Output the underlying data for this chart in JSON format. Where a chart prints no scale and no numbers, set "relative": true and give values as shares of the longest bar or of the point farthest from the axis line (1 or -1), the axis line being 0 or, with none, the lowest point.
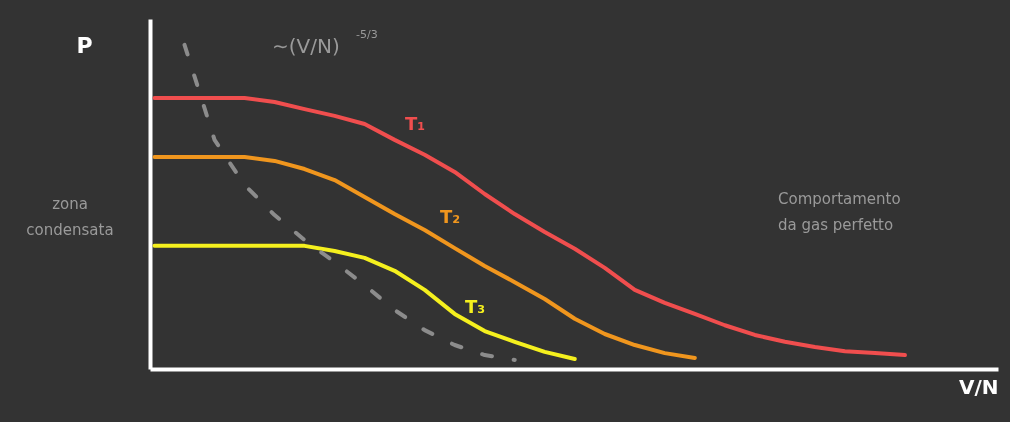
{
  "chart_data": {
    "type": "line",
    "relative": true,
    "xlabel": "V/N",
    "ylabel": "P",
    "legend": false,
    "grid": false,
    "marker": "none",
    "categories": [
      null,
      null,
      null,
      null,
      null,
      null,
      null,
      null,
      null,
      null,
      null,
      null,
      null,
      null,
      null,
      null,
      null,
      null,
      null,
      null,
      null,
      null,
      null,
      null,
      null,
      null
    ],
    "series": [
      {
        "name": "T₁",
        "color": "#f04e4e",
        "values": [
          0.836,
          0.836,
          0.836,
          0.836,
          0.824,
          0.802,
          0.781,
          0.756,
          0.707,
          0.661,
          0.608,
          0.54,
          0.478,
          0.423,
          0.371,
          0.312,
          0.244,
          0.204,
          0.17,
          0.135,
          0.105,
          0.084,
          0.068,
          0.055,
          0.049,
          0.043
        ]
      },
      {
        "name": "T₂",
        "color": "#f0961e",
        "values": [
          0.654,
          0.654,
          0.654,
          0.654,
          0.642,
          0.617,
          0.583,
          0.531,
          0.478,
          0.429,
          0.373,
          0.318,
          0.268,
          0.216,
          0.155,
          0.108,
          0.074,
          0.049,
          0.034,
          null,
          null,
          null,
          null,
          null,
          null,
          null
        ]
      },
      {
        "name": "T₃",
        "color": "#f5f01e",
        "values": [
          0.38,
          0.38,
          0.38,
          0.38,
          0.38,
          0.38,
          0.364,
          0.343,
          0.303,
          0.244,
          0.17,
          0.117,
          0.084,
          0.053,
          0.031,
          null,
          null,
          null,
          null,
          null,
          null,
          null,
          null,
          null,
          null,
          null
        ]
      },
      {
        "color": "#8c8c8c",
        "line_style": "dashed",
        "values": [
          null,
          1.0,
          0.707,
          0.568,
          0.475,
          0.398,
          0.33,
          0.259,
          0.182,
          0.12,
          0.074,
          0.043,
          0.028,
          null,
          null,
          null,
          null,
          null,
          null,
          null,
          null,
          null,
          null,
          null,
          null,
          null
        ]
      }
    ],
    "annotations": [
      "∼(V/N)$^{-5/3}$",
      "zona condensata",
      "Comportamento da gas perfetto"
    ]
  }
}
